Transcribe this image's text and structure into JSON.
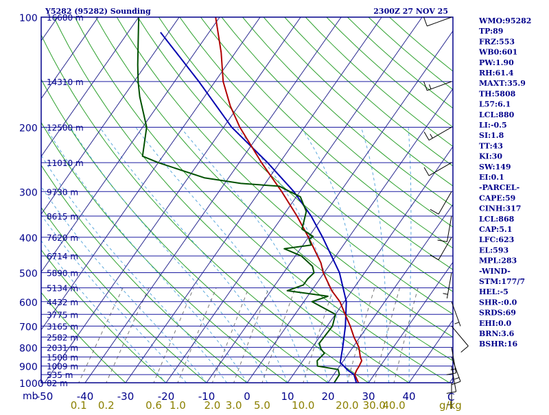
{
  "header": {
    "station": "Y5282 (95282) Sounding",
    "time": "2300Z 27 NOV 25"
  },
  "indices": [
    "WMO:95282",
    "TP:89",
    "FRZ:553",
    "WB0:601",
    "PW:1.90",
    "RH:61.4",
    "MAXT:35.9",
    "TH:5808",
    "L57:6.1",
    "LCL:880",
    "LI:-0.5",
    "SI:1.8",
    "TT:43",
    "KI:30",
    "SW:149",
    "EI:0.1",
    "-PARCEL-",
    "CAPE:59",
    "CINH:317",
    "LCL:868",
    "CAP:5.1",
    "LFC:623",
    "EL:593",
    "MPL:283",
    "-WIND-",
    "STM:177/7",
    "HEL:-5",
    "SHR-:0.0",
    "SRDS:69",
    "EHI:0.0",
    "BRN:3.6",
    "BSHR:16"
  ],
  "colors": {
    "axis": "#00008b",
    "isobar": "#1a1aa0",
    "isotherm": "#2a2a90",
    "dry_adiabat": "#2ca02c",
    "moist_adiabat": "#5aa8dc",
    "mixing_ratio": "#777777",
    "temperature": "#b00000",
    "dewpoint": "#005000",
    "parcel": "#0000b0",
    "mixing_label": "#8b8000"
  },
  "chart_data": {
    "type": "skew-t log-p sounding",
    "title": "Y5282 (95282) Sounding 2300Z 27 NOV 25",
    "ylabel": "mb",
    "xlabel": "C",
    "mixing_ratio_unit": "g/kg",
    "pressure_range": [
      1000,
      100
    ],
    "temperature_range": [
      -50,
      50
    ],
    "pressure_ticks": [
      100,
      200,
      300,
      400,
      500,
      600,
      700,
      800,
      900,
      1000
    ],
    "temperature_ticks": [
      -50,
      -40,
      -30,
      -20,
      -10,
      0,
      10,
      20,
      30,
      40
    ],
    "temperature_tick_labels": [
      "-50",
      "-40",
      "-30",
      "-20",
      "-10",
      "0",
      "10",
      "20",
      "30",
      "40"
    ],
    "heights": [
      {
        "p": 100,
        "label": "16680 m"
      },
      {
        "p": 150,
        "label": "14310 m"
      },
      {
        "p": 200,
        "label": "12500 m"
      },
      {
        "p": 250,
        "label": "11010 m"
      },
      {
        "p": 300,
        "label": "9730 m"
      },
      {
        "p": 350,
        "label": "8615 m"
      },
      {
        "p": 400,
        "label": "7620 m"
      },
      {
        "p": 450,
        "label": "6714 m"
      },
      {
        "p": 500,
        "label": "5890 m"
      },
      {
        "p": 550,
        "label": "5134 m"
      },
      {
        "p": 600,
        "label": "4432 m"
      },
      {
        "p": 650,
        "label": "3775 m"
      },
      {
        "p": 700,
        "label": "3165 m"
      },
      {
        "p": 750,
        "label": "2582 m"
      },
      {
        "p": 800,
        "label": "2031 m"
      },
      {
        "p": 850,
        "label": "1508 m"
      },
      {
        "p": 900,
        "label": "1009 m"
      },
      {
        "p": 950,
        "label": "535 m"
      },
      {
        "p": 1000,
        "label": "82 m"
      }
    ],
    "mixing_ratio_labels": [
      "0.1",
      "0.2",
      "0.6",
      "1.0",
      "2.0",
      "3.0",
      "5.0",
      "10.0",
      "20.0",
      "30.0",
      "40.0"
    ],
    "mixing_ratio_values": [
      0.1,
      0.2,
      0.6,
      1.0,
      2.0,
      3.0,
      5.0,
      10.0,
      20.0,
      30.0,
      40.0
    ],
    "temperature": [
      [
        1000,
        27.5
      ],
      [
        950,
        25.2
      ],
      [
        925,
        24.9
      ],
      [
        900,
        24.8
      ],
      [
        870,
        24.5
      ],
      [
        850,
        23.5
      ],
      [
        800,
        21.5
      ],
      [
        750,
        18.5
      ],
      [
        700,
        15.7
      ],
      [
        650,
        12.4
      ],
      [
        600,
        8.9
      ],
      [
        560,
        5.0
      ],
      [
        500,
        -0.2
      ],
      [
        470,
        -2.5
      ],
      [
        400,
        -10.0
      ],
      [
        350,
        -16.5
      ],
      [
        300,
        -24.5
      ],
      [
        250,
        -34.5
      ],
      [
        200,
        -46.0
      ],
      [
        175,
        -52.0
      ],
      [
        150,
        -58.0
      ],
      [
        125,
        -63.5
      ],
      [
        100,
        -71.0
      ]
    ],
    "dewpoint": [
      [
        1000,
        21.5
      ],
      [
        950,
        21.4
      ],
      [
        920,
        20.2
      ],
      [
        900,
        14.5
      ],
      [
        870,
        13.5
      ],
      [
        830,
        14.0
      ],
      [
        810,
        12.5
      ],
      [
        780,
        11.0
      ],
      [
        700,
        11.3
      ],
      [
        650,
        10.0
      ],
      [
        600,
        2.0
      ],
      [
        580,
        5.0
      ],
      [
        560,
        -6.0
      ],
      [
        540,
        -3.0
      ],
      [
        520,
        -3.0
      ],
      [
        500,
        -2.5
      ],
      [
        480,
        -4.0
      ],
      [
        450,
        -8.5
      ],
      [
        430,
        -14.0
      ],
      [
        420,
        -8.0
      ],
      [
        405,
        -9.5
      ],
      [
        398,
        -9.0
      ],
      [
        380,
        -13.0
      ],
      [
        340,
        -15.0
      ],
      [
        310,
        -19.0
      ],
      [
        300,
        -22.5
      ],
      [
        290,
        -26.0
      ],
      [
        285,
        -36.0
      ],
      [
        275,
        -46.0
      ],
      [
        250,
        -60.0
      ],
      [
        240,
        -65.0
      ],
      [
        200,
        -69.0
      ],
      [
        165,
        -76.0
      ],
      [
        150,
        -79.0
      ],
      [
        135,
        -82.0
      ],
      [
        100,
        -90.0
      ]
    ],
    "parcel": [
      [
        1000,
        27.0
      ],
      [
        950,
        25.0
      ],
      [
        925,
        22.8
      ],
      [
        880,
        19.5
      ],
      [
        800,
        17.5
      ],
      [
        700,
        14.5
      ],
      [
        600,
        10.5
      ],
      [
        500,
        3.8
      ],
      [
        400,
        -6.5
      ],
      [
        350,
        -13.0
      ],
      [
        300,
        -21.5
      ],
      [
        250,
        -33.0
      ],
      [
        200,
        -48.0
      ],
      [
        150,
        -64.0
      ],
      [
        110,
        -82.0
      ]
    ],
    "wind_barbs": [
      {
        "p": 100,
        "dir": 250,
        "kt": 10
      },
      {
        "p": 150,
        "dir": 250,
        "kt": 15
      },
      {
        "p": 200,
        "dir": 240,
        "kt": 15
      },
      {
        "p": 250,
        "dir": 240,
        "kt": 10
      },
      {
        "p": 300,
        "dir": 210,
        "kt": 10
      },
      {
        "p": 350,
        "dir": 190,
        "kt": 10
      },
      {
        "p": 400,
        "dir": 210,
        "kt": 10
      },
      {
        "p": 500,
        "dir": 190,
        "kt": 5
      },
      {
        "p": 600,
        "dir": 160,
        "kt": 5
      },
      {
        "p": 700,
        "dir": 140,
        "kt": 10
      },
      {
        "p": 800,
        "dir": 170,
        "kt": 15
      },
      {
        "p": 850,
        "dir": 160,
        "kt": 15
      },
      {
        "p": 900,
        "dir": 170,
        "kt": 10
      },
      {
        "p": 1000,
        "dir": 180,
        "kt": 5
      }
    ]
  }
}
